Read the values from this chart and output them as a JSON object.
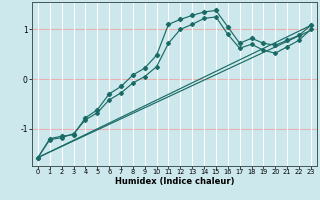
{
  "title": "",
  "xlabel": "Humidex (Indice chaleur)",
  "xlim": [
    -0.5,
    23.5
  ],
  "ylim": [
    -1.75,
    1.55
  ],
  "bg_color": "#cce8ec",
  "line_color": "#1a6b66",
  "grid_color_h": "#e8b0b0",
  "grid_color_v": "#ffffff",
  "yticks": [
    -1,
    0,
    1
  ],
  "xticks": [
    0,
    1,
    2,
    3,
    4,
    5,
    6,
    7,
    8,
    9,
    10,
    11,
    12,
    13,
    14,
    15,
    16,
    17,
    18,
    19,
    20,
    21,
    22,
    23
  ],
  "line1_x": [
    0,
    1,
    2,
    3,
    4,
    5,
    6,
    7,
    8,
    9,
    10,
    11,
    12,
    13,
    14,
    15,
    16,
    17,
    18,
    19,
    20,
    21,
    22,
    23
  ],
  "line1_y": [
    -1.58,
    -1.2,
    -1.15,
    -1.12,
    -0.78,
    -0.62,
    -0.3,
    -0.15,
    0.08,
    0.22,
    0.48,
    1.1,
    1.2,
    1.28,
    1.35,
    1.38,
    1.05,
    0.72,
    0.82,
    0.72,
    0.68,
    0.78,
    0.88,
    1.08
  ],
  "line2_x": [
    0,
    1,
    2,
    3,
    4,
    5,
    6,
    7,
    8,
    9,
    10,
    11,
    12,
    13,
    14,
    15,
    16,
    17,
    18,
    19,
    20,
    21,
    22,
    23
  ],
  "line2_y": [
    -1.58,
    -1.22,
    -1.18,
    -1.1,
    -0.82,
    -0.68,
    -0.42,
    -0.28,
    -0.08,
    0.05,
    0.25,
    0.72,
    1.0,
    1.1,
    1.22,
    1.25,
    0.9,
    0.62,
    0.7,
    0.58,
    0.52,
    0.65,
    0.78,
    1.0
  ],
  "line3_x": [
    0,
    23
  ],
  "line3_y": [
    -1.58,
    1.08
  ],
  "line4_x": [
    0,
    23
  ],
  "line4_y": [
    -1.58,
    0.98
  ]
}
